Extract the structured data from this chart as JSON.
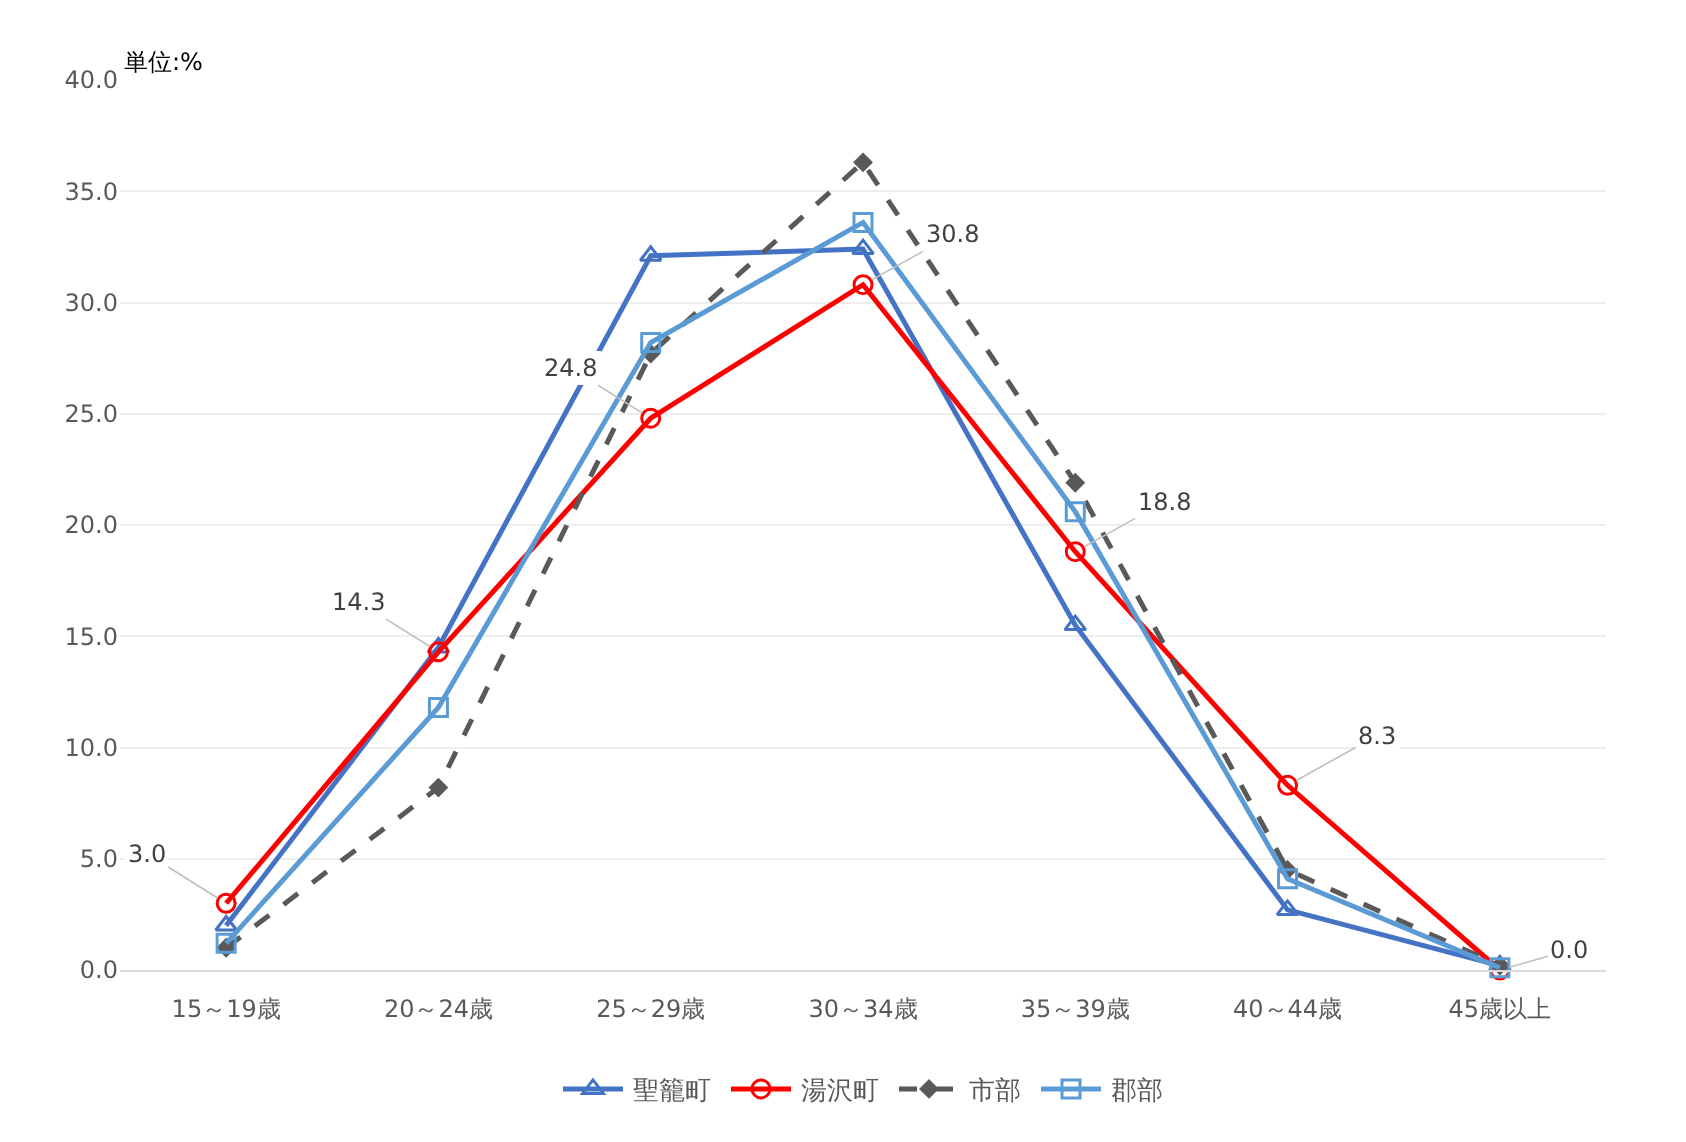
{
  "chart_data": {
    "type": "line",
    "annotations": [
      "単位:%"
    ],
    "categories": [
      "15～19歳",
      "20～24歳",
      "25～29歳",
      "30～34歳",
      "35～39歳",
      "40～44歳",
      "45歳以上"
    ],
    "series": [
      {
        "name": "聖籠町",
        "color": "#4472c4",
        "marker": "triangle",
        "values": [
          2.0,
          14.5,
          32.1,
          32.4,
          15.5,
          2.7,
          0.2
        ]
      },
      {
        "name": "湯沢町",
        "color": "#ff0000",
        "marker": "circle",
        "values": [
          3.0,
          14.3,
          24.8,
          30.8,
          18.8,
          8.3,
          0.0
        ],
        "value_labels": [
          "3.0",
          "14.3",
          "24.8",
          "30.8",
          "18.8",
          "8.3",
          "0.0"
        ]
      },
      {
        "name": "市部",
        "color": "#595959",
        "marker": "diamond",
        "line_style": "dashed",
        "values": [
          1.0,
          8.2,
          27.7,
          36.3,
          21.9,
          4.5,
          0.2
        ]
      },
      {
        "name": "郡部",
        "color": "#5b9bd5",
        "marker": "square",
        "values": [
          1.2,
          11.8,
          28.2,
          33.6,
          20.6,
          4.1,
          0.1
        ]
      }
    ],
    "ylim": [
      0,
      40
    ],
    "yticks": [
      {
        "value": 0,
        "label": "0.0"
      },
      {
        "value": 5,
        "label": "5.0"
      },
      {
        "value": 10,
        "label": "10.0"
      },
      {
        "value": 15,
        "label": "15.0"
      },
      {
        "value": 20,
        "label": "20.0"
      },
      {
        "value": 25,
        "label": "25.0"
      },
      {
        "value": 30,
        "label": "30.0"
      },
      {
        "value": 35,
        "label": "35.0"
      },
      {
        "value": 40,
        "label": "40.0"
      }
    ],
    "grid": "y",
    "legend": "bottom",
    "line_style": "solid"
  }
}
